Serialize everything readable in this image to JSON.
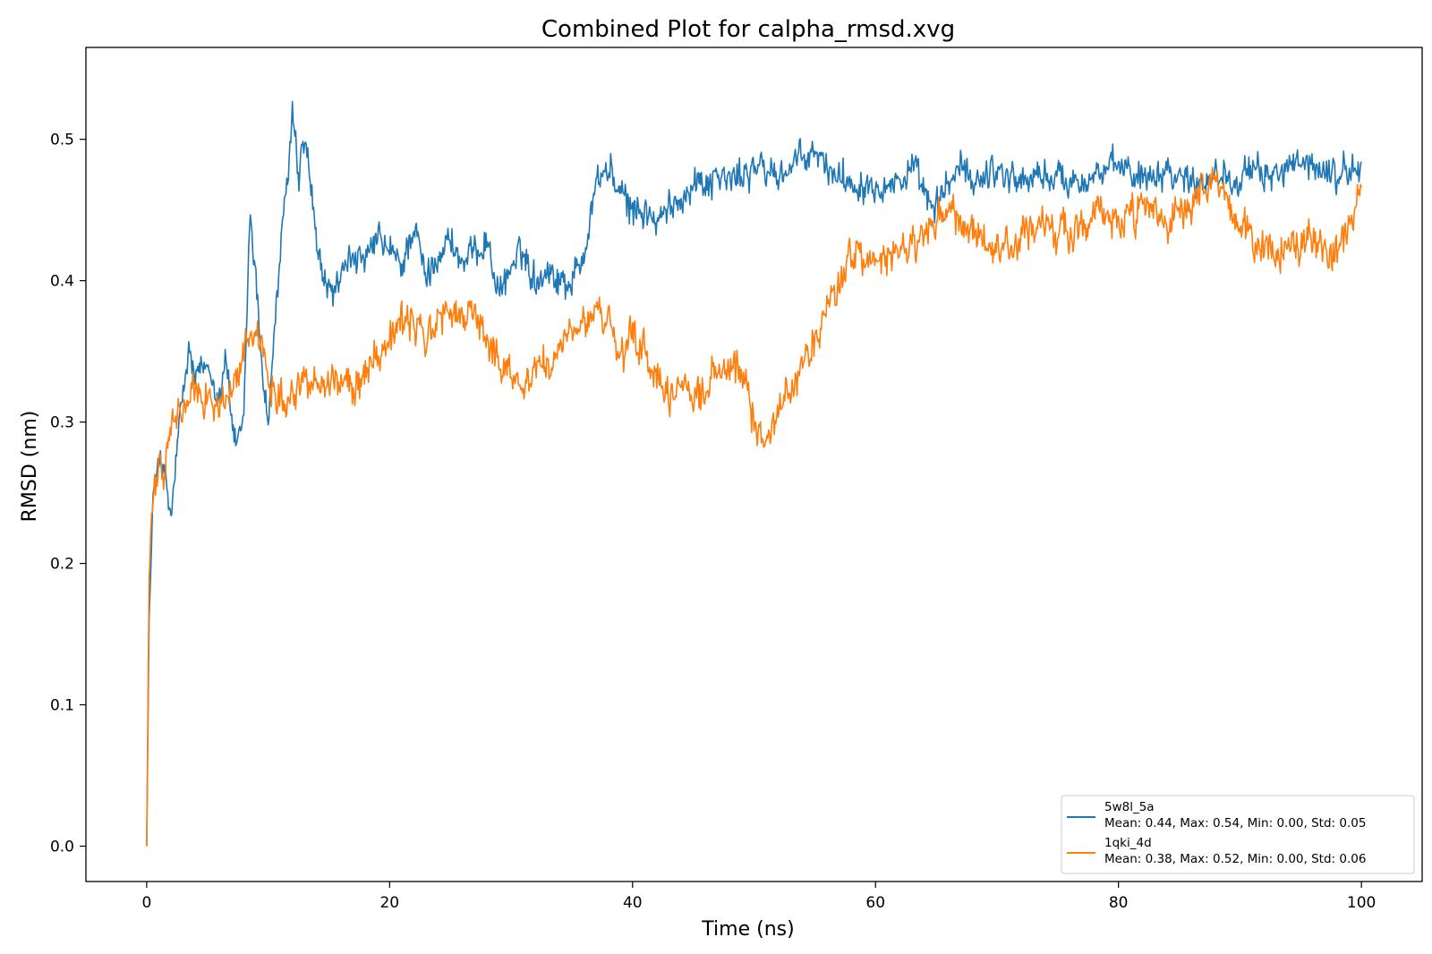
{
  "chart_data": {
    "type": "line",
    "title": "Combined Plot for calpha_rmsd.xvg",
    "xlabel": "Time (ns)",
    "ylabel": "RMSD (nm)",
    "xlim": [
      -5,
      105
    ],
    "ylim": [
      -0.025,
      0.565
    ],
    "xticks": [
      0,
      20,
      40,
      60,
      80,
      100
    ],
    "yticks": [
      0.0,
      0.1,
      0.2,
      0.3,
      0.4,
      0.5
    ],
    "xtick_labels": [
      "0",
      "20",
      "40",
      "60",
      "80",
      "100"
    ],
    "ytick_labels": [
      "0.0",
      "0.1",
      "0.2",
      "0.3",
      "0.4",
      "0.5"
    ],
    "grid": false,
    "legend_position": "lower-right",
    "series": [
      {
        "name": "5w8l_5a",
        "stats": "Mean: 0.44, Max: 0.54, Min: 0.00, Std: 0.05",
        "color": "#1f77b4",
        "noise": 0.016,
        "x": [
          0,
          0.2,
          0.5,
          1,
          1.5,
          2,
          2.5,
          3,
          3.5,
          4,
          5,
          6,
          6.5,
          7,
          7.5,
          8,
          8.5,
          9,
          9.5,
          10,
          10.5,
          11,
          11.5,
          12,
          12.5,
          13,
          13.5,
          14,
          15,
          16,
          17,
          18,
          19,
          20,
          21,
          22,
          23,
          24,
          25,
          26,
          27,
          28,
          29,
          30,
          31,
          32,
          33,
          34,
          35,
          36,
          37,
          38,
          39,
          40,
          41,
          42,
          43,
          44,
          45,
          46,
          47,
          48,
          50,
          52,
          54,
          55,
          56,
          58,
          60,
          62,
          63,
          64,
          65,
          66,
          67,
          68,
          70,
          72,
          74,
          76,
          78,
          80,
          82,
          84,
          86,
          88,
          90,
          92,
          94,
          96,
          98,
          100
        ],
        "y": [
          0.0,
          0.16,
          0.24,
          0.28,
          0.26,
          0.23,
          0.28,
          0.32,
          0.35,
          0.33,
          0.34,
          0.32,
          0.35,
          0.3,
          0.28,
          0.3,
          0.45,
          0.4,
          0.34,
          0.3,
          0.36,
          0.42,
          0.46,
          0.52,
          0.47,
          0.5,
          0.47,
          0.42,
          0.39,
          0.4,
          0.42,
          0.41,
          0.43,
          0.42,
          0.41,
          0.44,
          0.4,
          0.42,
          0.43,
          0.41,
          0.42,
          0.43,
          0.39,
          0.41,
          0.42,
          0.4,
          0.41,
          0.4,
          0.4,
          0.42,
          0.47,
          0.48,
          0.46,
          0.45,
          0.45,
          0.44,
          0.45,
          0.46,
          0.47,
          0.47,
          0.475,
          0.47,
          0.48,
          0.475,
          0.485,
          0.49,
          0.48,
          0.47,
          0.47,
          0.47,
          0.48,
          0.46,
          0.45,
          0.47,
          0.48,
          0.47,
          0.48,
          0.47,
          0.475,
          0.47,
          0.475,
          0.48,
          0.475,
          0.48,
          0.47,
          0.475,
          0.475,
          0.475,
          0.48,
          0.48,
          0.475,
          0.48
        ]
      },
      {
        "name": "1qki_4d",
        "stats": "Mean: 0.38, Max: 0.52, Min: 0.00, Std: 0.06",
        "color": "#ff7f0e",
        "noise": 0.018,
        "x": [
          0,
          0.2,
          0.5,
          1,
          1.5,
          2,
          2.5,
          3,
          4,
          5,
          6,
          7,
          8,
          9,
          10,
          11,
          12,
          13,
          14,
          15,
          16,
          17,
          18,
          19,
          20,
          21,
          22,
          23,
          24,
          25,
          26,
          27,
          28,
          29,
          30,
          31,
          32,
          33,
          34,
          35,
          36,
          37,
          38,
          39,
          40,
          41,
          42,
          43,
          44,
          45,
          46,
          47,
          48,
          49,
          50,
          51,
          52,
          53,
          54,
          55,
          56,
          57,
          58,
          60,
          62,
          64,
          66,
          68,
          70,
          72,
          74,
          76,
          78,
          80,
          82,
          84,
          86,
          88,
          90,
          92,
          94,
          96,
          98,
          100
        ],
        "y": [
          0.0,
          0.19,
          0.24,
          0.27,
          0.26,
          0.3,
          0.3,
          0.31,
          0.32,
          0.32,
          0.31,
          0.32,
          0.35,
          0.37,
          0.33,
          0.32,
          0.32,
          0.33,
          0.33,
          0.33,
          0.33,
          0.32,
          0.34,
          0.35,
          0.36,
          0.37,
          0.37,
          0.36,
          0.37,
          0.38,
          0.37,
          0.38,
          0.36,
          0.34,
          0.34,
          0.32,
          0.34,
          0.34,
          0.35,
          0.36,
          0.37,
          0.38,
          0.37,
          0.34,
          0.36,
          0.35,
          0.33,
          0.31,
          0.33,
          0.32,
          0.32,
          0.34,
          0.33,
          0.34,
          0.3,
          0.29,
          0.31,
          0.32,
          0.34,
          0.36,
          0.38,
          0.4,
          0.42,
          0.41,
          0.42,
          0.43,
          0.45,
          0.43,
          0.42,
          0.43,
          0.44,
          0.43,
          0.45,
          0.44,
          0.45,
          0.44,
          0.45,
          0.47,
          0.44,
          0.42,
          0.42,
          0.43,
          0.42,
          0.46
        ]
      }
    ]
  }
}
